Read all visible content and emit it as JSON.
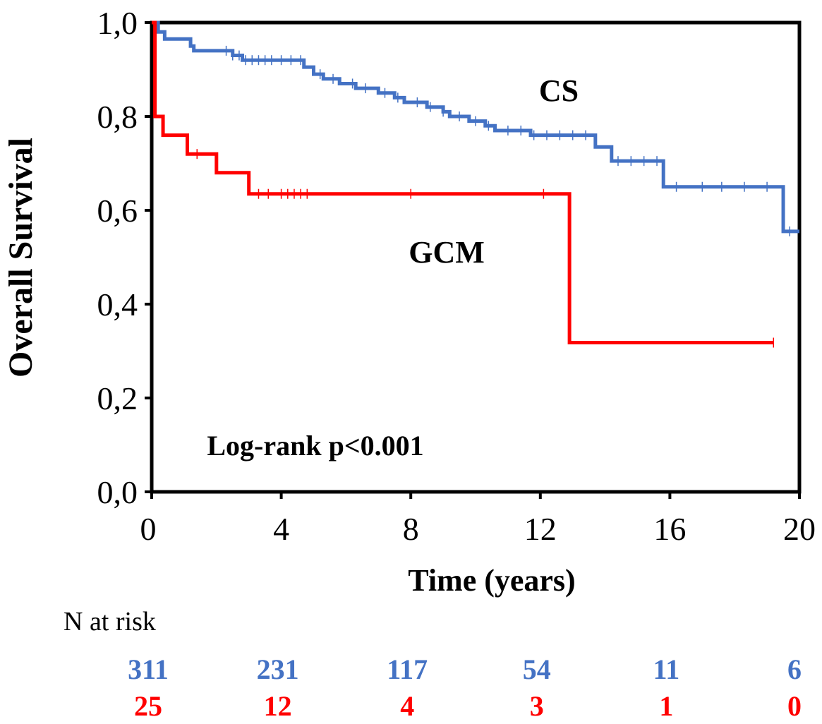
{
  "chart_data": {
    "type": "line",
    "step": true,
    "xlabel": "Time (years)",
    "ylabel": "Overall Survival",
    "xlim": [
      0,
      20
    ],
    "xticks": [
      0,
      4,
      8,
      12,
      16,
      20
    ],
    "ylim": [
      0,
      1
    ],
    "yticks": [
      {
        "value": 0,
        "label": "0,0"
      },
      {
        "value": 0.2,
        "label": "0,2"
      },
      {
        "value": 0.4,
        "label": "0,4"
      },
      {
        "value": 0.6,
        "label": "0,6"
      },
      {
        "value": 0.8,
        "label": "0,8"
      },
      {
        "value": 1,
        "label": "1,0"
      }
    ],
    "series": [
      {
        "name": "CS",
        "color": "#4472c4",
        "x": [
          0,
          0.2,
          0.4,
          1.2,
          1.3,
          2.5,
          2.8,
          4.7,
          5.0,
          5.3,
          5.8,
          6.3,
          7.0,
          7.5,
          7.8,
          8.5,
          9.0,
          9.2,
          9.8,
          10.3,
          10.6,
          11.7,
          13.7,
          14.2,
          15.8,
          19.5,
          20
        ],
        "values": [
          1,
          0.98,
          0.965,
          0.95,
          0.94,
          0.93,
          0.92,
          0.905,
          0.89,
          0.88,
          0.87,
          0.86,
          0.85,
          0.84,
          0.83,
          0.82,
          0.81,
          0.8,
          0.79,
          0.78,
          0.77,
          0.76,
          0.735,
          0.705,
          0.65,
          0.555,
          0.555
        ],
        "censor_x": [
          2.3,
          2.5,
          2.7,
          2.9,
          3.1,
          3.3,
          3.5,
          3.7,
          4.0,
          4.3,
          4.6,
          5.2,
          5.6,
          6.2,
          6.6,
          7.2,
          7.6,
          8.2,
          8.6,
          9.0,
          9.5,
          10.0,
          10.4,
          11.0,
          11.4,
          11.8,
          12.2,
          12.6,
          13.0,
          13.4,
          14.4,
          14.8,
          15.2,
          15.6,
          16.2,
          17.0,
          17.6,
          18.3,
          19.0,
          19.7
        ],
        "censor_values": [
          0.94,
          0.93,
          0.93,
          0.92,
          0.92,
          0.92,
          0.92,
          0.92,
          0.92,
          0.92,
          0.92,
          0.89,
          0.88,
          0.87,
          0.86,
          0.85,
          0.84,
          0.83,
          0.82,
          0.81,
          0.8,
          0.79,
          0.78,
          0.77,
          0.77,
          0.76,
          0.76,
          0.76,
          0.76,
          0.76,
          0.705,
          0.705,
          0.705,
          0.705,
          0.65,
          0.65,
          0.65,
          0.65,
          0.65,
          0.555
        ]
      },
      {
        "name": "GCM",
        "color": "#ff0000",
        "x": [
          0,
          0.1,
          0.35,
          1.1,
          2.0,
          3.0,
          12.9,
          19.2
        ],
        "values": [
          1,
          0.8,
          0.76,
          0.72,
          0.68,
          0.635,
          0.318,
          0.318
        ],
        "censor_x": [
          1.4,
          3.3,
          3.6,
          4.0,
          4.2,
          4.4,
          4.6,
          4.8,
          8.0,
          12.1,
          19.2
        ],
        "censor_values": [
          0.72,
          0.635,
          0.635,
          0.635,
          0.635,
          0.635,
          0.635,
          0.635,
          0.635,
          0.635,
          0.318
        ]
      }
    ],
    "annotations": [
      "Log-rank p<0.001"
    ],
    "risk_table": {
      "title": "N at risk",
      "rows": [
        {
          "color": "#4472c4",
          "values": [
            311,
            231,
            117,
            54,
            11,
            6
          ]
        },
        {
          "color": "#ff0000",
          "values": [
            25,
            12,
            4,
            3,
            1,
            0
          ]
        }
      ]
    }
  }
}
